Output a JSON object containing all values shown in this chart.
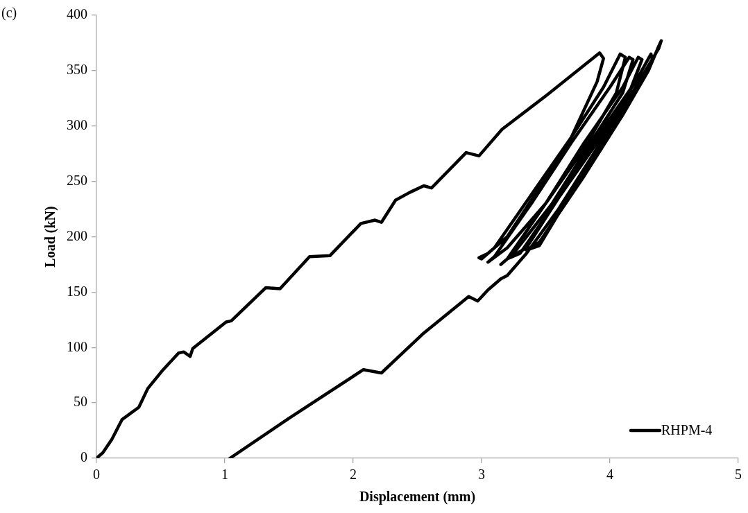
{
  "chart_data": {
    "type": "line",
    "xlabel": "Displacement (mm)",
    "ylabel": "Load (kN)",
    "annotations": [
      "(c)"
    ],
    "xlim": [
      0,
      5
    ],
    "xticks": [
      0,
      1,
      2,
      3,
      4,
      5
    ],
    "ylim": [
      0,
      400
    ],
    "yticks": [
      0,
      50,
      100,
      150,
      200,
      250,
      300,
      350,
      400
    ],
    "grid": false,
    "legend": "bottom right",
    "marker": "none",
    "line_style": "solid",
    "series": [
      {
        "name": "RHPM-4",
        "color": "#000000",
        "x": [
          0,
          0.05,
          0.12,
          0.2,
          0.33,
          0.4,
          0.52,
          0.64,
          0.68,
          0.73,
          0.75,
          1.01,
          1.05,
          1.32,
          1.43,
          1.66,
          1.82,
          2.06,
          2.17,
          2.22,
          2.33,
          2.44,
          2.55,
          2.61,
          2.88,
          2.98,
          3.16,
          3.51,
          3.92,
          3.95,
          3.9,
          3.7,
          3.4,
          3.2,
          3.05,
          2.98,
          3.0,
          3.1,
          3.4,
          3.7,
          3.95,
          4.08,
          4.12,
          4.05,
          3.8,
          3.5,
          3.2,
          3.05,
          3.1,
          3.4,
          3.7,
          4.0,
          4.15,
          4.18,
          4.1,
          3.85,
          3.55,
          3.25,
          3.15,
          3.2,
          3.5,
          3.8,
          4.1,
          4.22,
          4.25,
          4.15,
          3.9,
          3.6,
          3.35,
          3.2,
          3.3,
          3.6,
          3.9,
          4.2,
          4.32,
          4.33,
          4.2,
          3.95,
          3.7,
          3.45,
          3.35,
          3.45,
          3.8,
          4.1,
          4.3,
          4.38,
          4.4,
          4.38,
          4.2,
          3.9,
          3.6,
          3.35,
          3.2,
          3.15,
          3.05,
          2.97,
          2.9,
          2.54,
          2.22,
          2.08,
          1.5,
          1.04
        ],
        "values": [
          0,
          5,
          17,
          35,
          46,
          63,
          80,
          95,
          96,
          92,
          99,
          123,
          124,
          154,
          153,
          182,
          183,
          212,
          215,
          213,
          233,
          240,
          246,
          244,
          276,
          273,
          297,
          328,
          366,
          361,
          340,
          290,
          235,
          200,
          185,
          181,
          180,
          190,
          240,
          290,
          335,
          365,
          362,
          330,
          280,
          230,
          190,
          177,
          182,
          232,
          285,
          335,
          362,
          360,
          330,
          285,
          230,
          185,
          175,
          180,
          230,
          285,
          335,
          362,
          360,
          330,
          285,
          235,
          190,
          180,
          185,
          235,
          290,
          340,
          365,
          360,
          330,
          285,
          240,
          192,
          188,
          195,
          255,
          310,
          350,
          372,
          377,
          370,
          335,
          280,
          225,
          185,
          165,
          162,
          152,
          142,
          146,
          112,
          77,
          80,
          36,
          0
        ]
      }
    ]
  }
}
